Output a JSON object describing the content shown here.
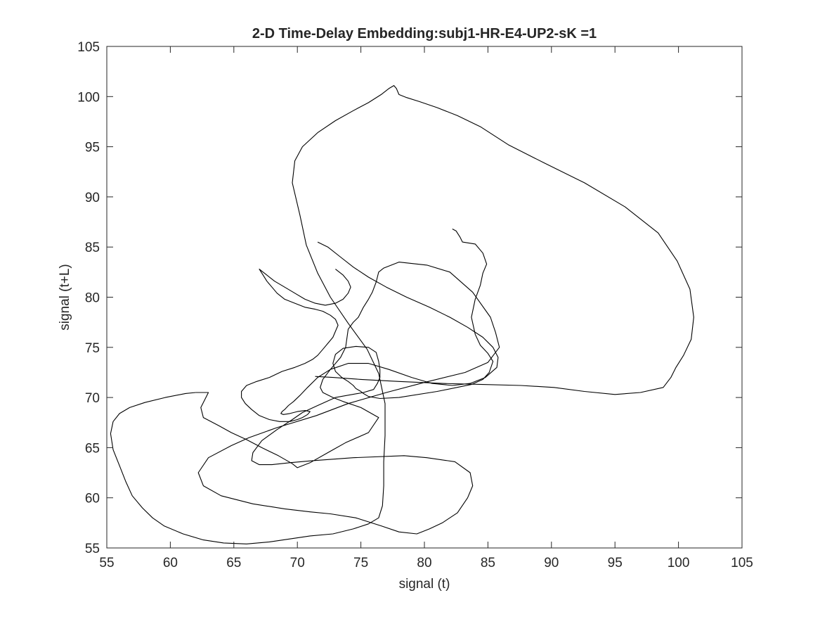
{
  "chart_data": {
    "type": "line",
    "title": "2-D Time-Delay Embedding:subj1-HR-E4-UP2-sK =1",
    "xlabel": "signal (t)",
    "ylabel": "signal (t+L)",
    "xlim": [
      55,
      105
    ],
    "ylim": [
      55,
      105
    ],
    "xticks": [
      "55",
      "60",
      "65",
      "70",
      "75",
      "80",
      "85",
      "90",
      "95",
      "100",
      "105"
    ],
    "yticks": [
      "55",
      "60",
      "65",
      "70",
      "75",
      "80",
      "85",
      "90",
      "95",
      "100",
      "105"
    ],
    "grid": false,
    "box": true,
    "line_color": "#000000",
    "series": [
      {
        "x": [
          62.0,
          62.4,
          63.0,
          62.4,
          62.6,
          63.8,
          64.8,
          66.0,
          67.2,
          68.5,
          69.6,
          70.0,
          71.0,
          72.4,
          73.8,
          75.6,
          76.4,
          75.0,
          73.6,
          72.8,
          72.0,
          71.8,
          72.0,
          72.6,
          73.4,
          73.8,
          74.0,
          74.4,
          74.8,
          75.2,
          75.6,
          75.9,
          76.2,
          76.4,
          76.8,
          78.0,
          80.2,
          82.0,
          83.8,
          85.2,
          85.6,
          85.9,
          85.0,
          83.2,
          80.0,
          77.0,
          74.0,
          71.5,
          68.4,
          66.2,
          64.8,
          63.0,
          62.2,
          62.6,
          64.0,
          66.5,
          69.0,
          71.0,
          72.6,
          74.6,
          76.6,
          78.0,
          79.4,
          80.4,
          81.4,
          82.6,
          83.4,
          83.8,
          83.6,
          82.4,
          80.2,
          78.4,
          74.4,
          71.2,
          69.4,
          68.0,
          67.0,
          66.4,
          66.5,
          67.2,
          68.4,
          69.6,
          70.4,
          71.6,
          73.0,
          75.2,
          76.0,
          76.3,
          76.5,
          76.5,
          76.4,
          76.2,
          75.6,
          74.6,
          73.6,
          73.0,
          72.8,
          73.0,
          73.5,
          74.0,
          74.4,
          74.6,
          75.0,
          75.2,
          75.6,
          76.5,
          78.0,
          81.0,
          83.7,
          84.6,
          85.1,
          85.4,
          85.0,
          84.4,
          84.0,
          83.7,
          84.0,
          84.4,
          84.6,
          84.9,
          84.6,
          84.0,
          83.0,
          82.8,
          82.5,
          82.2
        ],
        "y": [
          70.5,
          70.5,
          70.5,
          69.0,
          68.0,
          67.2,
          66.5,
          65.8,
          65.0,
          64.2,
          63.4,
          63.0,
          63.5,
          64.5,
          65.5,
          66.5,
          68.0,
          69.0,
          69.6,
          70.0,
          70.5,
          71.0,
          71.8,
          72.8,
          74.0,
          75.0,
          76.8,
          77.5,
          78.0,
          79.0,
          79.8,
          80.5,
          81.5,
          82.5,
          82.9,
          83.5,
          83.2,
          82.5,
          80.5,
          78.0,
          76.5,
          75.0,
          73.5,
          72.5,
          71.5,
          70.5,
          69.4,
          68.2,
          67.0,
          66.0,
          65.2,
          64.0,
          62.5,
          61.2,
          60.2,
          59.4,
          58.9,
          58.6,
          58.4,
          58.0,
          57.2,
          56.6,
          56.4,
          56.9,
          57.5,
          58.5,
          60.0,
          61.2,
          62.5,
          63.6,
          64.0,
          64.2,
          64.0,
          63.7,
          63.5,
          63.3,
          63.3,
          63.7,
          64.5,
          65.7,
          66.8,
          67.8,
          68.5,
          69.2,
          70.0,
          70.5,
          70.8,
          71.4,
          72.0,
          72.8,
          73.6,
          74.5,
          75.0,
          75.1,
          74.9,
          74.3,
          73.4,
          72.6,
          72.0,
          71.6,
          71.2,
          70.9,
          70.6,
          70.4,
          70.1,
          69.9,
          70.0,
          70.6,
          71.3,
          71.8,
          72.5,
          73.6,
          74.4,
          75.2,
          76.3,
          78.0,
          79.8,
          81.2,
          82.4,
          83.3,
          84.4,
          85.3,
          85.5,
          86.0,
          86.6,
          86.8
        ]
      },
      {
        "x": [
          62.0,
          61.2,
          59.6,
          58.0,
          56.8,
          56.0,
          55.5,
          55.3,
          55.5,
          56.0,
          56.5,
          57.0,
          57.8,
          58.6,
          59.5,
          61.0,
          62.6,
          64.2,
          66.0,
          67.8,
          69.4,
          71.0,
          72.8,
          74.4,
          75.6,
          76.4,
          76.7,
          76.8,
          76.8,
          76.9,
          76.9,
          76.4,
          75.5,
          74.0,
          72.6,
          71.6,
          70.7,
          70.2,
          69.6,
          69.8,
          70.4,
          71.6,
          73.0,
          74.4,
          75.6,
          76.6,
          77.2,
          77.6,
          77.8,
          78.0,
          78.6,
          79.6,
          81.0,
          82.6,
          84.4,
          86.6,
          89.4,
          92.6,
          95.8,
          98.4,
          99.9,
          100.9,
          101.2,
          101.0,
          100.4,
          99.8,
          99.4,
          98.8,
          97.0,
          95.0,
          92.6,
          90.2,
          87.6,
          84.6,
          81.4,
          78.0,
          75.0,
          72.8,
          71.4
        ],
        "y": [
          70.5,
          70.4,
          70.0,
          69.5,
          69.0,
          68.4,
          67.6,
          66.4,
          64.8,
          63.2,
          61.6,
          60.2,
          59.0,
          58.0,
          57.2,
          56.4,
          55.8,
          55.5,
          55.4,
          55.6,
          55.9,
          56.2,
          56.4,
          56.9,
          57.4,
          58.0,
          59.2,
          61.2,
          63.6,
          66.2,
          69.4,
          72.4,
          74.8,
          77.4,
          80.0,
          82.4,
          85.2,
          88.2,
          91.4,
          93.6,
          95.0,
          96.4,
          97.6,
          98.6,
          99.4,
          100.2,
          100.8,
          101.1,
          100.8,
          100.2,
          99.9,
          99.5,
          98.9,
          98.1,
          97.0,
          95.2,
          93.4,
          91.4,
          89.0,
          86.4,
          83.6,
          80.8,
          78.0,
          75.8,
          74.2,
          73.0,
          72.0,
          71.0,
          70.5,
          70.3,
          70.6,
          71.0,
          71.2,
          71.3,
          71.4,
          71.6,
          71.8,
          72.0,
          72.1
        ]
      },
      {
        "x": [
          71.6,
          72.4,
          73.4,
          74.4,
          75.6,
          77.0,
          78.6,
          80.4,
          82.0,
          83.4,
          84.6,
          85.4,
          85.8,
          85.7,
          84.8,
          83.6,
          82.2,
          80.6,
          79.0,
          77.2,
          75.6,
          74.0,
          72.6,
          71.6,
          70.8,
          70.2,
          69.7,
          69.3,
          69.0,
          68.8,
          68.7,
          68.9,
          69.4,
          70.0,
          70.6,
          71.0,
          70.8,
          70.4,
          70.0,
          69.4,
          68.6,
          67.8,
          67.0,
          66.4,
          65.9,
          65.6,
          65.6,
          66.0,
          66.8,
          67.8,
          68.8,
          69.8,
          70.6,
          71.2,
          71.6,
          72.0,
          72.4,
          72.8,
          73.0,
          73.2,
          73.0,
          72.6,
          72.0,
          71.4,
          70.6,
          69.8,
          69.0,
          68.4,
          68.0,
          67.6,
          67.3,
          67.1,
          67.0,
          67.2,
          67.6,
          68.2,
          69.0,
          69.8,
          70.6,
          71.4,
          72.2,
          73.0,
          73.6,
          74.0,
          74.2,
          74.0,
          73.6,
          73.0
        ],
        "y": [
          85.5,
          85.0,
          84.0,
          83.0,
          82.0,
          81.0,
          80.0,
          79.0,
          78.0,
          77.0,
          76.0,
          75.0,
          74.0,
          73.0,
          72.0,
          71.4,
          71.2,
          71.4,
          72.0,
          72.8,
          73.4,
          73.4,
          72.8,
          72.0,
          71.0,
          70.2,
          69.6,
          69.2,
          68.8,
          68.6,
          68.4,
          68.3,
          68.4,
          68.6,
          68.7,
          68.6,
          68.3,
          68.0,
          67.8,
          67.6,
          67.6,
          67.8,
          68.2,
          68.8,
          69.4,
          70.0,
          70.6,
          71.2,
          71.6,
          72.0,
          72.6,
          73.0,
          73.4,
          73.8,
          74.2,
          74.8,
          75.4,
          76.0,
          76.6,
          77.2,
          77.8,
          78.2,
          78.6,
          78.8,
          79.0,
          79.4,
          79.8,
          80.4,
          81.0,
          81.6,
          82.2,
          82.6,
          82.8,
          82.6,
          82.2,
          81.6,
          81.0,
          80.4,
          79.8,
          79.4,
          79.2,
          79.4,
          79.8,
          80.4,
          81.0,
          81.6,
          82.2,
          82.8
        ]
      }
    ]
  }
}
